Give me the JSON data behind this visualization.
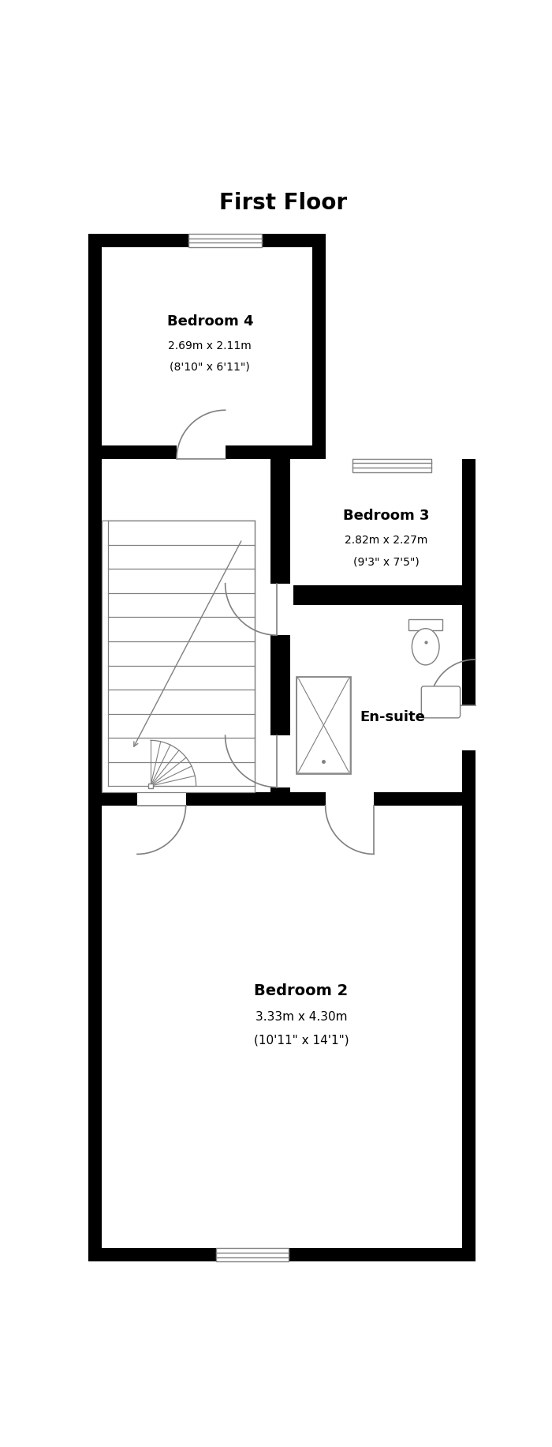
{
  "title": "First Floor",
  "title_fontsize": 20,
  "wall_color": "#000000",
  "interior_color": "#ffffff",
  "bg_color": "#ffffff",
  "line_color": "#1a1a1a",
  "gray_color": "#808080",
  "rooms": [
    {
      "name": "Bedroom 4",
      "sub1": "2.69m x 2.11m",
      "sub2": "(8'10\" x 6'11\")"
    },
    {
      "name": "Bedroom 3",
      "sub1": "2.82m x 2.27m",
      "sub2": "(9'3\" x 7'5\")"
    },
    {
      "name": "En-suite"
    },
    {
      "name": "Bedroom 2",
      "sub1": "3.33m x 4.30m",
      "sub2": "(10'11\" x 14'1\")"
    }
  ]
}
